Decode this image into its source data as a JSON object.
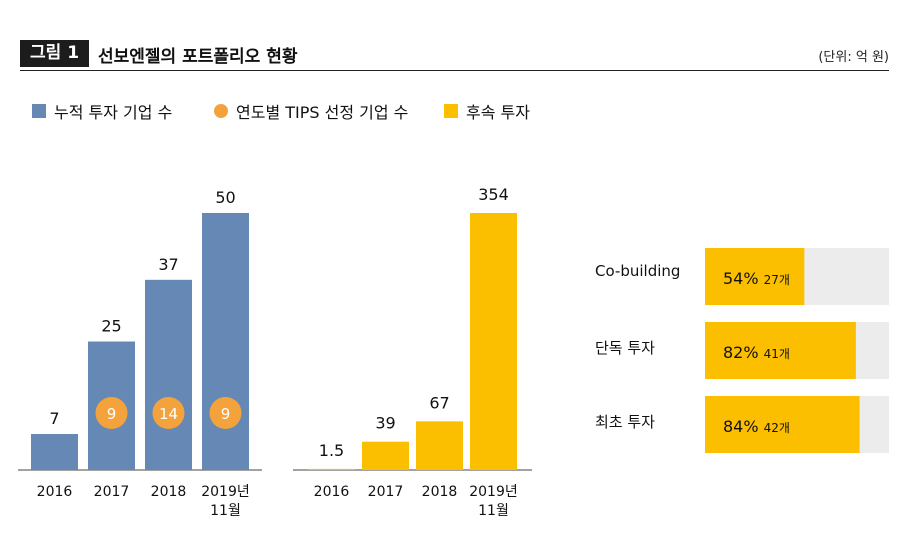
{
  "header": {
    "figure_label": "그림 1",
    "title": "선보엔젤의 포트폴리오 현황",
    "unit": "(단위: 억 원)"
  },
  "legend": [
    {
      "label": "누적 투자 기업 수",
      "color": "#6688b5",
      "shape": "square"
    },
    {
      "label": "연도별 TIPS 선정 기업 수",
      "color": "#f4a33c",
      "shape": "circle"
    },
    {
      "label": "후속 투자",
      "color": "#fbbf00",
      "shape": "square"
    }
  ],
  "chart_data": [
    {
      "type": "bar",
      "title": "누적 투자 기업 수 / 연도별 TIPS 선정 기업 수",
      "categories": [
        "2016",
        "2017",
        "2018",
        "2019년 11월"
      ],
      "series": [
        {
          "name": "누적 투자 기업 수",
          "values": [
            7,
            25,
            37,
            50
          ],
          "color": "#6688b5"
        },
        {
          "name": "연도별 TIPS 선정 기업 수",
          "values": [
            null,
            9,
            14,
            9
          ],
          "color": "#f4a33c",
          "marker": "circle"
        }
      ],
      "value_labels": [
        "7",
        "25",
        "37",
        "50"
      ],
      "tips_labels": [
        "",
        "9",
        "14",
        "9"
      ],
      "ylim": [
        0,
        52
      ]
    },
    {
      "type": "bar",
      "title": "후속 투자",
      "categories": [
        "2016",
        "2017",
        "2018",
        "2019년 11월"
      ],
      "series": [
        {
          "name": "후속 투자",
          "values": [
            1.5,
            39,
            67,
            354
          ],
          "color": "#fbbf00"
        }
      ],
      "value_labels": [
        "1.5",
        "39",
        "67",
        "354"
      ],
      "ylim": [
        0,
        368
      ]
    },
    {
      "type": "bar",
      "orientation": "horizontal",
      "categories": [
        "Co-building",
        "단독 투자",
        "최초 투자"
      ],
      "series": [
        {
          "name": "비율",
          "values": [
            54,
            82,
            84
          ],
          "unit": "%",
          "color": "#fbbf00"
        }
      ],
      "percent_labels": [
        "54%",
        "82%",
        "84%"
      ],
      "counts": [
        "27개",
        "41개",
        "42개"
      ],
      "xlim": [
        0,
        100
      ]
    }
  ],
  "colors": {
    "track": "#ececec",
    "axis": "#444444",
    "white": "#ffffff"
  }
}
